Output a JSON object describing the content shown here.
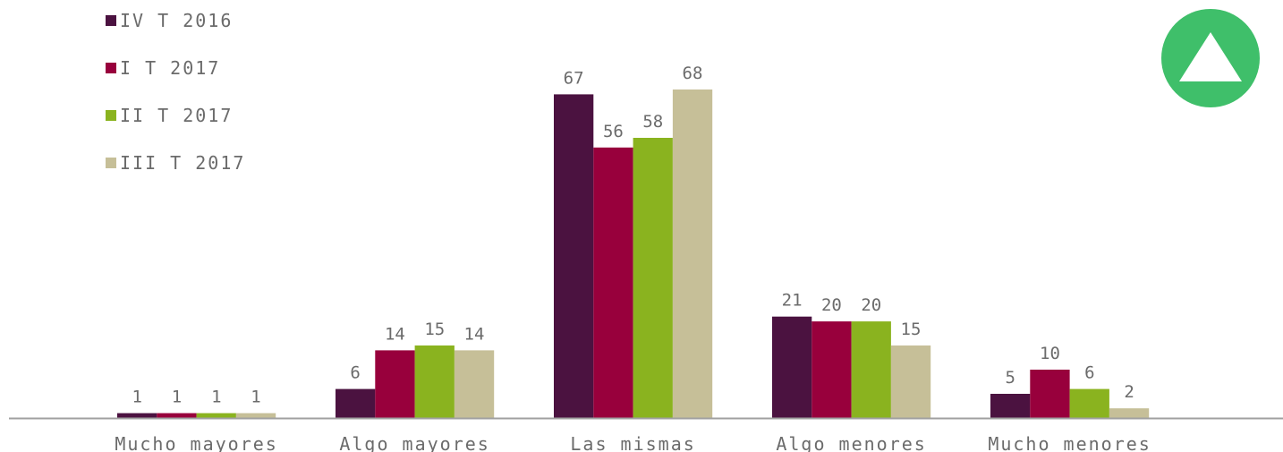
{
  "chart_data": {
    "type": "bar",
    "categories": [
      "Mucho mayores",
      "Algo mayores",
      "Las mismas",
      "Algo menores",
      "Mucho menores"
    ],
    "series": [
      {
        "name": "IV T 2016",
        "color": "#4b1240",
        "values": [
          1,
          6,
          67,
          21,
          5
        ]
      },
      {
        "name": "I T 2017",
        "color": "#98003c",
        "values": [
          1,
          14,
          56,
          20,
          10
        ]
      },
      {
        "name": "II T 2017",
        "color": "#8ab31f",
        "values": [
          1,
          15,
          58,
          20,
          6
        ]
      },
      {
        "name": "III T 2017",
        "color": "#c6bf98",
        "values": [
          1,
          14,
          68,
          15,
          2
        ]
      }
    ],
    "ylim": [
      0,
      68
    ],
    "title": "",
    "xlabel": "",
    "ylabel": "",
    "grid": false,
    "legend_position": "top-left",
    "data_labels": true
  },
  "indicator": {
    "icon": "up-triangle-icon",
    "color": "#3fbf6a"
  },
  "colors": {
    "axis": "#a0a0a0",
    "text": "#6b6b6b"
  }
}
